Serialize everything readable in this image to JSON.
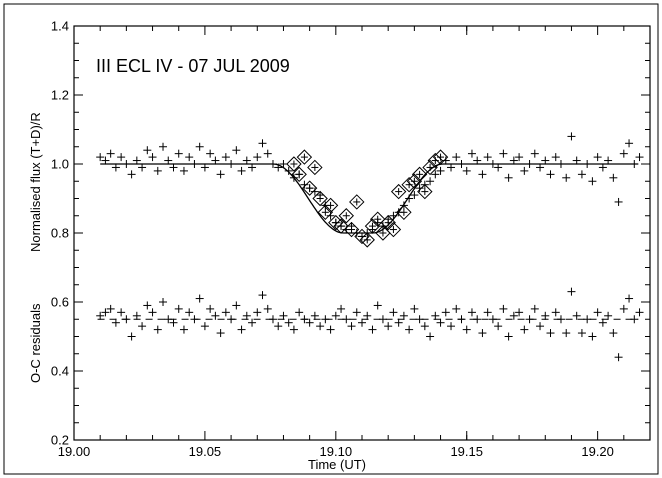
{
  "chart_data": {
    "type": "scatter",
    "title": "III ECL IV - 07 JUL 2009",
    "xlabel": "Time (UT)",
    "ylabel_upper": "Normalised flux (T+D)/R",
    "ylabel_lower": "O-C residuals",
    "xlim": [
      19.0,
      19.22
    ],
    "ylim": [
      0.2,
      1.4
    ],
    "x_ticks": [
      "19.00",
      "19.05",
      "19.10",
      "19.15",
      "19.20"
    ],
    "y_ticks": [
      "0.2",
      "0.4",
      "0.6",
      "0.8",
      "1.0",
      "1.2",
      "1.4"
    ],
    "model": {
      "baseline": 1.0,
      "depth": 0.2,
      "ingress_start": 19.076,
      "bottom_start": 19.103,
      "bottom_end": 19.114,
      "egress_end": 19.141
    },
    "residual_offset": 0.55,
    "series": [
      {
        "marker": "plus",
        "x": [
          19.01,
          19.012,
          19.014,
          19.016,
          19.018,
          19.02,
          19.022,
          19.024,
          19.026,
          19.028,
          19.03,
          19.032,
          19.034,
          19.036,
          19.038,
          19.04,
          19.042,
          19.044,
          19.046,
          19.048,
          19.05,
          19.052,
          19.054,
          19.056,
          19.058,
          19.06,
          19.062,
          19.064,
          19.066,
          19.068,
          19.07,
          19.072,
          19.074,
          19.076,
          19.078,
          19.08,
          19.082,
          19.084,
          19.086,
          19.088,
          19.09,
          19.092,
          19.094,
          19.096,
          19.098,
          19.1,
          19.102,
          19.104,
          19.106,
          19.108,
          19.11,
          19.112,
          19.114,
          19.116,
          19.118,
          19.12,
          19.122,
          19.124,
          19.126,
          19.128,
          19.13,
          19.132,
          19.134,
          19.136,
          19.138,
          19.14,
          19.142,
          19.144,
          19.146,
          19.148,
          19.15,
          19.152,
          19.154,
          19.156,
          19.158,
          19.16,
          19.162,
          19.164,
          19.166,
          19.168,
          19.17,
          19.172,
          19.174,
          19.176,
          19.178,
          19.18,
          19.182,
          19.184,
          19.186,
          19.188,
          19.19,
          19.192,
          19.194,
          19.196,
          19.198,
          19.2,
          19.202,
          19.204,
          19.206,
          19.208,
          19.21,
          19.212,
          19.214,
          19.216
        ],
        "y": [
          1.02,
          1.01,
          1.03,
          0.99,
          1.02,
          1.0,
          0.97,
          1.01,
          0.99,
          1.04,
          1.02,
          0.98,
          1.05,
          1.01,
          0.99,
          1.03,
          0.98,
          1.02,
          1.0,
          1.05,
          0.99,
          1.03,
          1.01,
          0.97,
          1.02,
          1.0,
          1.04,
          0.98,
          1.01,
          0.99,
          1.02,
          1.06,
          1.03,
          1.0,
          0.99,
          1.0,
          0.98,
          0.96,
          0.97,
          0.94,
          0.93,
          0.92,
          0.91,
          0.88,
          0.85,
          0.83,
          0.82,
          0.81,
          0.82,
          0.8,
          0.79,
          0.8,
          0.81,
          0.83,
          0.82,
          0.84,
          0.85,
          0.86,
          0.88,
          0.9,
          0.91,
          0.93,
          0.94,
          0.95,
          0.97,
          0.98,
          1.01,
          0.99,
          1.02,
          1.0,
          0.98,
          1.03,
          1.01,
          0.97,
          1.02,
          1.0,
          0.99,
          1.03,
          0.96,
          1.01,
          1.02,
          0.98,
          1.0,
          1.03,
          0.99,
          1.01,
          0.97,
          1.02,
          1.0,
          0.96,
          1.08,
          1.01,
          0.97,
          1.0,
          0.95,
          1.02,
          0.99,
          1.01,
          0.96,
          0.89,
          1.03,
          1.06,
          1.0,
          1.02
        ],
        "residuals": [
          0.56,
          0.57,
          0.58,
          0.54,
          0.57,
          0.55,
          0.5,
          0.56,
          0.53,
          0.59,
          0.57,
          0.52,
          0.6,
          0.55,
          0.54,
          0.58,
          0.52,
          0.57,
          0.55,
          0.61,
          0.53,
          0.58,
          0.56,
          0.51,
          0.57,
          0.55,
          0.59,
          0.52,
          0.56,
          0.54,
          0.57,
          0.62,
          0.58,
          0.55,
          0.53,
          0.56,
          0.54,
          0.52,
          0.57,
          0.55,
          0.54,
          0.56,
          0.53,
          0.55,
          0.52,
          0.56,
          0.58,
          0.55,
          0.53,
          0.57,
          0.54,
          0.56,
          0.52,
          0.59,
          0.55,
          0.53,
          0.57,
          0.54,
          0.56,
          0.52,
          0.58,
          0.55,
          0.53,
          0.5,
          0.56,
          0.54,
          0.57,
          0.53,
          0.58,
          0.55,
          0.52,
          0.57,
          0.55,
          0.51,
          0.57,
          0.55,
          0.53,
          0.58,
          0.5,
          0.56,
          0.57,
          0.52,
          0.55,
          0.58,
          0.53,
          0.56,
          0.51,
          0.57,
          0.55,
          0.51,
          0.63,
          0.56,
          0.51,
          0.55,
          0.5,
          0.57,
          0.54,
          0.56,
          0.51,
          0.44,
          0.58,
          0.61,
          0.55,
          0.57
        ]
      },
      {
        "marker": "diamond",
        "x": [
          19.084,
          19.086,
          19.088,
          19.09,
          19.092,
          19.094,
          19.096,
          19.098,
          19.1,
          19.102,
          19.104,
          19.106,
          19.108,
          19.11,
          19.112,
          19.114,
          19.116,
          19.118,
          19.12,
          19.122,
          19.124,
          19.126,
          19.128,
          19.13,
          19.132,
          19.134,
          19.136,
          19.138,
          19.14
        ],
        "y": [
          1.0,
          0.97,
          1.02,
          0.93,
          0.99,
          0.9,
          0.86,
          0.88,
          0.83,
          0.82,
          0.85,
          0.81,
          0.89,
          0.79,
          0.78,
          0.82,
          0.84,
          0.8,
          0.83,
          0.81,
          0.92,
          0.86,
          0.94,
          0.95,
          0.97,
          0.92,
          0.99,
          1.01,
          1.02
        ]
      }
    ]
  }
}
